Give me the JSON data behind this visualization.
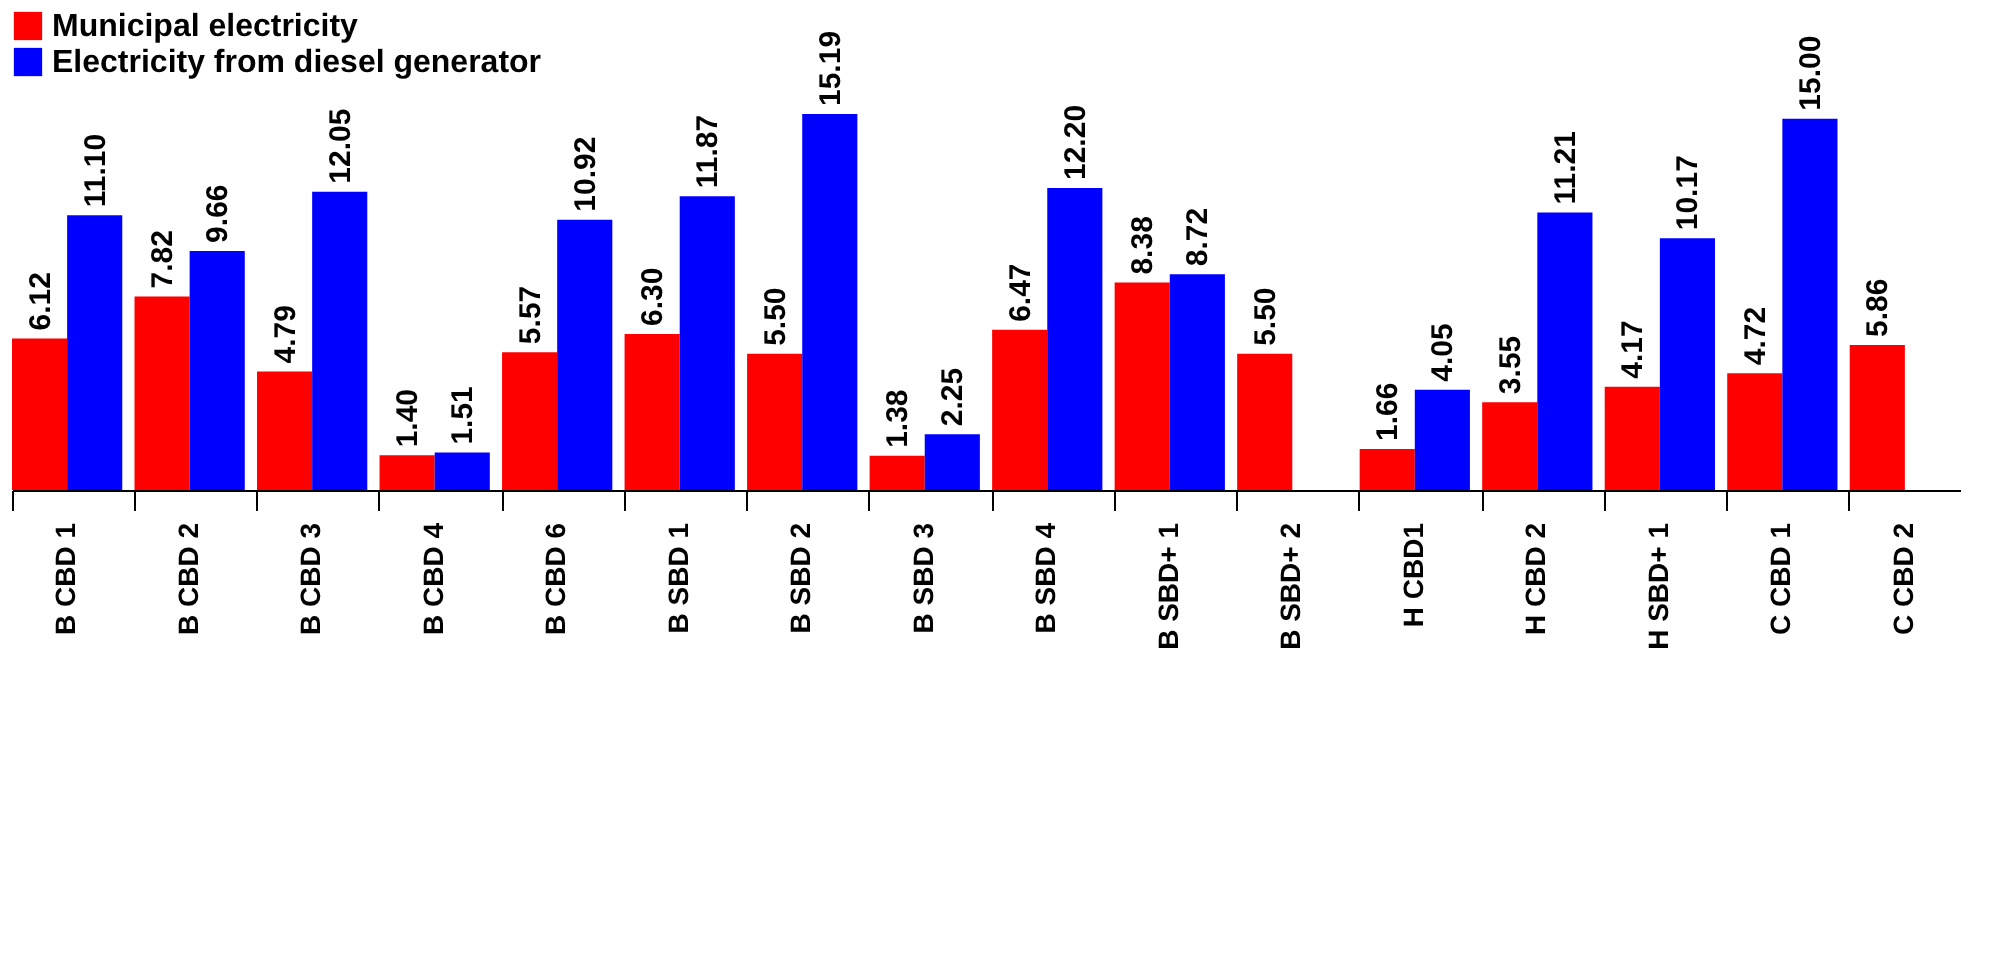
{
  "chart_data": {
    "type": "bar",
    "categories": [
      "B CBD 1",
      "B CBD 2",
      "B CBD 3",
      "B CBD 4",
      "B CBD 6",
      "B SBD 1",
      "B SBD 2",
      "B SBD 3",
      "B SBD 4",
      "B SBD+ 1",
      "B SBD+ 2",
      "H CBD1",
      "H CBD 2",
      "H SBD+ 1",
      "C CBD 1",
      "C CBD 2"
    ],
    "series": [
      {
        "name": "Municipal electricity",
        "color": "#ff0000",
        "values": [
          6.12,
          7.82,
          4.79,
          1.4,
          5.57,
          6.3,
          5.5,
          1.38,
          6.47,
          8.38,
          5.5,
          1.66,
          3.55,
          4.17,
          4.72,
          5.86
        ],
        "value_labels": [
          "6.12",
          "7.82",
          "4.79",
          "1.40",
          "5.57",
          "6.30",
          "5.50",
          "1.38",
          "6.47",
          "8.38",
          "5.50",
          "1.66",
          "3.55",
          "4.17",
          "4.72",
          "5.86"
        ]
      },
      {
        "name": "Electricity from diesel generator",
        "color": "#0000ff",
        "values": [
          11.1,
          9.66,
          12.05,
          1.51,
          10.92,
          11.87,
          15.19,
          2.25,
          12.2,
          8.72,
          null,
          4.05,
          11.21,
          10.17,
          15.0,
          null
        ],
        "value_labels": [
          "11.10",
          "9.66",
          "12.05",
          "1.51",
          "10.92",
          "11.87",
          "15.19",
          "2.25",
          "12.20",
          "8.72",
          null,
          "4.05",
          "11.21",
          "10.17",
          "15.00",
          null
        ]
      }
    ],
    "legend": "top",
    "grid": false,
    "tick_labels": "x"
  }
}
